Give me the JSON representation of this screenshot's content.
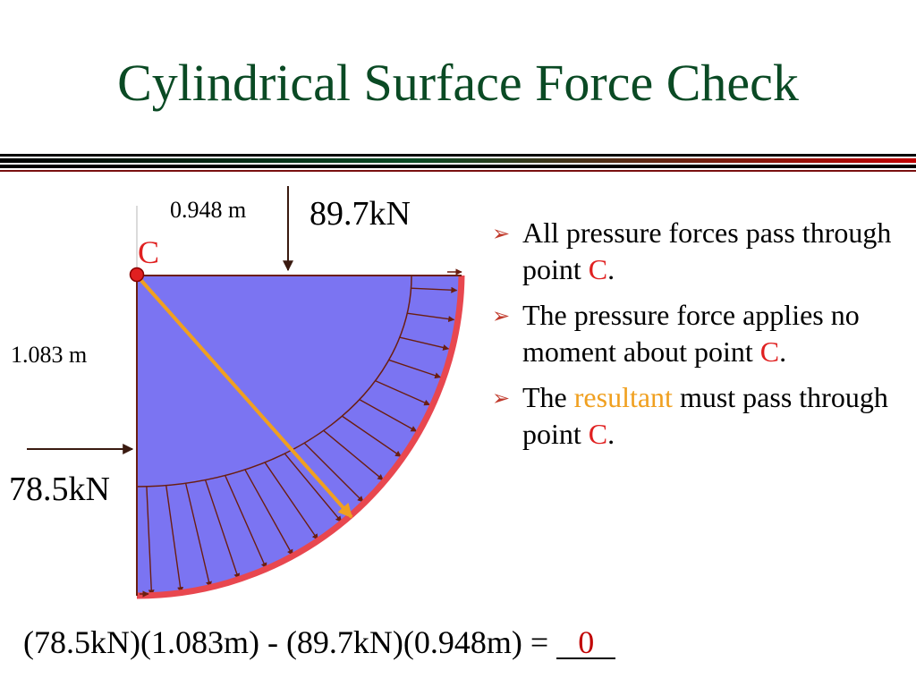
{
  "slide": {
    "title": "Cylindrical Surface Force Check"
  },
  "diagram": {
    "point_label": "C",
    "horizontal_distance": "0.948 m",
    "vertical_distance": "1.083 m",
    "vertical_force": "89.7kN",
    "horizontal_force": "78.5kN",
    "colors": {
      "fill": "#7b74f2",
      "surface": "#e8474f",
      "pressure_arrow": "#6b1e10",
      "resultant": "#f0a020",
      "point": "#e02020"
    }
  },
  "bullets": [
    {
      "parts": [
        {
          "text": "All pressure forces pass through point ",
          "style": "normal"
        },
        {
          "text": "C",
          "style": "red"
        },
        {
          "text": ".",
          "style": "normal"
        }
      ]
    },
    {
      "parts": [
        {
          "text": "The pressure force applies no moment about point ",
          "style": "normal"
        },
        {
          "text": "C",
          "style": "red"
        },
        {
          "text": ".",
          "style": "normal"
        }
      ]
    },
    {
      "parts": [
        {
          "text": "The ",
          "style": "normal"
        },
        {
          "text": "resultant",
          "style": "orange"
        },
        {
          "text": " must pass through point ",
          "style": "normal"
        },
        {
          "text": "C",
          "style": "red"
        },
        {
          "text": ".",
          "style": "normal"
        }
      ]
    }
  ],
  "equation": {
    "text": "(78.5kN)(1.083m) - (89.7kN)(0.948m) = ",
    "answer": "0"
  }
}
